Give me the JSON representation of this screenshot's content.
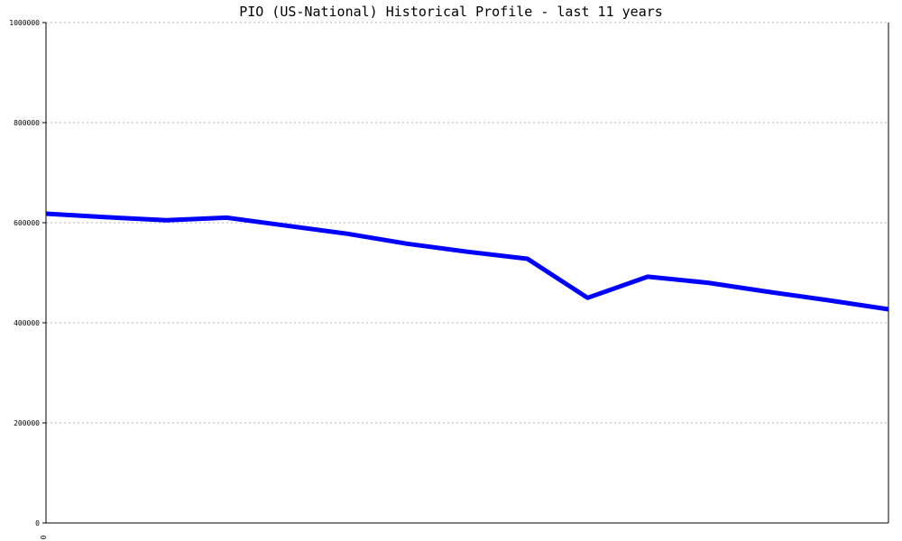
{
  "chart_data": {
    "type": "line",
    "title": "PIO (US-National) Historical Profile - last 11 years",
    "xlabel": "",
    "ylabel": "",
    "x_tick_labels": [
      "0"
    ],
    "ylim": [
      0,
      1000000
    ],
    "yticks": [
      0,
      200000,
      400000,
      600000,
      800000,
      1000000
    ],
    "ytick_labels": [
      "0",
      "200000",
      "400000",
      "600000",
      "800000",
      "1000000"
    ],
    "grid": "horizontal-dotted",
    "legend": "none",
    "series": [
      {
        "color": "#0000ff",
        "values": [
          618000,
          611000,
          605000,
          610000,
          594000,
          578000,
          558000,
          542000,
          528000,
          450000,
          492000,
          480000,
          462000,
          445000,
          427000
        ]
      }
    ]
  }
}
